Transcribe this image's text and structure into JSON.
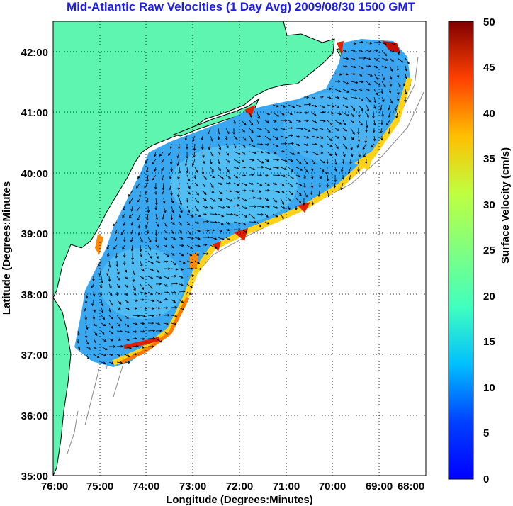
{
  "title": "Mid-Atlantic Raw Velocities (1 Day Avg) 2009/08/30 1500 GMT",
  "xlabel": "Longitude (Degrees:Minutes)",
  "ylabel": "Latitude (Degrees:Minutes",
  "x_ticks": [
    "76:00",
    "75:00",
    "74:00",
    "73:00",
    "72:00",
    "71:00",
    "70:00",
    "69:00",
    "68:00"
  ],
  "y_ticks": [
    "42:00",
    "41:00",
    "40:00",
    "39:00",
    "38:00",
    "37:00",
    "36:00",
    "35:00"
  ],
  "colorbar": {
    "label": "Surface Velocity (cm/s)",
    "ticks": [
      "50",
      "45",
      "40",
      "35",
      "30",
      "25",
      "20",
      "15",
      "10",
      "5",
      "0"
    ],
    "range": [
      0,
      50
    ],
    "colormap": "jet"
  },
  "colors": {
    "land": "#5ef5b0",
    "title": "#1a1aff",
    "ocean_background": "#ffffff"
  },
  "map_extent": {
    "lon": [
      -76,
      -68
    ],
    "lat": [
      35,
      42.5
    ]
  }
}
